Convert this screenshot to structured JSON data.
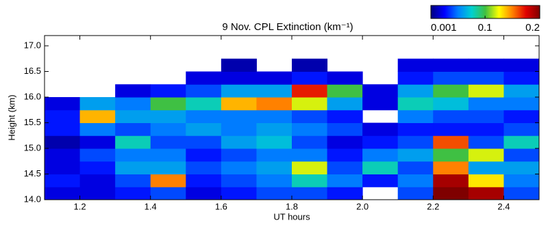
{
  "chart_data": {
    "type": "heatmap",
    "title": "9 Nov.   CPL Extinction (km⁻¹)",
    "x_label": "UT hours",
    "y_label": "Height (km)",
    "x": [
      1.15,
      1.25,
      1.35,
      1.45,
      1.55,
      1.65,
      1.75,
      1.85,
      1.95,
      2.05,
      2.15,
      2.25,
      2.35,
      2.45
    ],
    "y": [
      14.125,
      14.375,
      14.625,
      14.875,
      15.125,
      15.375,
      15.625,
      15.875,
      16.125,
      16.375,
      16.625,
      16.875
    ],
    "values": [
      [
        0.02,
        0.03,
        0.02,
        0.02,
        0.01,
        0.03,
        0.03,
        0.02,
        null,
        null,
        null,
        null
      ],
      [
        0.02,
        0.02,
        0.03,
        0.04,
        0.02,
        0.05,
        0.14,
        0.06,
        null,
        null,
        null,
        null
      ],
      [
        0.03,
        0.04,
        0.06,
        0.05,
        0.08,
        0.04,
        0.06,
        0.05,
        0.02,
        null,
        null,
        null
      ],
      [
        0.04,
        0.15,
        0.06,
        0.05,
        0.04,
        0.05,
        0.06,
        0.1,
        0.03,
        null,
        null,
        null
      ],
      [
        0.02,
        0.03,
        0.04,
        0.03,
        0.04,
        0.06,
        0.05,
        0.08,
        0.04,
        0.02,
        null,
        null
      ],
      [
        0.03,
        0.04,
        0.05,
        0.04,
        0.06,
        0.05,
        0.05,
        0.14,
        0.06,
        0.02,
        0.01,
        null
      ],
      [
        0.04,
        0.05,
        0.06,
        0.05,
        0.07,
        0.06,
        0.05,
        0.15,
        0.06,
        0.02,
        null,
        null
      ],
      [
        0.04,
        0.08,
        0.12,
        0.05,
        0.04,
        0.05,
        0.04,
        0.12,
        0.17,
        0.03,
        0.01,
        null
      ],
      [
        0.03,
        0.05,
        0.04,
        0.03,
        0.02,
        0.04,
        0.03,
        0.06,
        0.1,
        0.02,
        null,
        null
      ],
      [
        null,
        0.03,
        0.08,
        0.05,
        0.03,
        0.02,
        null,
        0.02,
        0.02,
        null,
        null,
        null
      ],
      [
        0.04,
        0.05,
        0.04,
        0.06,
        0.04,
        0.03,
        0.05,
        0.08,
        0.06,
        0.03,
        0.02,
        null
      ],
      [
        0.2,
        0.19,
        0.15,
        0.1,
        0.16,
        0.03,
        0.04,
        0.07,
        0.1,
        0.04,
        0.02,
        null
      ],
      [
        0.19,
        0.13,
        0.06,
        0.12,
        0.04,
        0.03,
        0.04,
        0.05,
        0.12,
        0.04,
        0.02,
        null
      ],
      [
        0.04,
        0.05,
        0.06,
        0.04,
        0.08,
        0.04,
        0.03,
        0.05,
        0.06,
        0.03,
        0.02,
        null
      ]
    ],
    "xlim": [
      1.1,
      2.5
    ],
    "ylim": [
      14.0,
      17.2
    ],
    "xticks": [
      1.2,
      1.4,
      1.6,
      1.8,
      {
        "value": 2.0,
        "label": "2.0"
      },
      2.2,
      2.4
    ],
    "yticks": [
      {
        "value": 14.0,
        "label": "14.0"
      },
      14.5,
      {
        "value": 15.0,
        "label": "15.0"
      },
      15.5,
      {
        "value": 16.0,
        "label": "16.0"
      },
      16.5,
      {
        "value": 17.0,
        "label": "17.0"
      }
    ],
    "clim": [
      0.001,
      0.2
    ],
    "cticks": [
      0.001,
      0.1,
      0.2
    ],
    "colormap": [
      "#00007f",
      "#0000ff",
      "#0080ff",
      "#00d0d0",
      "#40c040",
      "#ffff00",
      "#ff8000",
      "#e00000",
      "#7f0000"
    ]
  }
}
